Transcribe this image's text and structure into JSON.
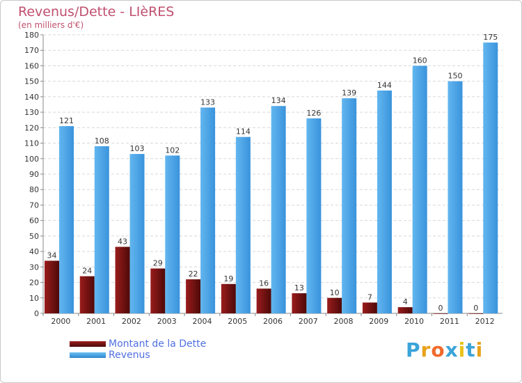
{
  "chart_data": {
    "type": "bar",
    "title": "Revenus/Dette - LIèRES",
    "subtitle": "(en milliers d'€)",
    "categories": [
      "2000",
      "2001",
      "2002",
      "2003",
      "2004",
      "2005",
      "2006",
      "2007",
      "2008",
      "2009",
      "2010",
      "2011",
      "2012"
    ],
    "series": [
      {
        "name": "Montant de la Dette",
        "color": "#7a1212",
        "values": [
          34,
          24,
          43,
          29,
          22,
          19,
          16,
          13,
          10,
          7,
          4,
          0,
          0
        ]
      },
      {
        "name": "Revenus",
        "color": "#4ea3e6",
        "values": [
          121,
          108,
          103,
          102,
          133,
          114,
          134,
          126,
          139,
          144,
          160,
          150,
          175
        ]
      }
    ],
    "ylim": [
      0,
      180
    ],
    "ytick_step": 10,
    "grid": true,
    "legend_position": "bottom-left"
  },
  "legend": {
    "items": [
      {
        "label": "Montant de la Dette",
        "color": "#7a1212"
      },
      {
        "label": "Revenus",
        "color": "#4ea3e6"
      }
    ]
  },
  "logo": {
    "text": "Proxiti",
    "colors": [
      "#3ba4d9",
      "#e8a21a",
      "#f06a2a",
      "#3ba4d9",
      "#e8c21a",
      "#3ba4d9",
      "#e8a21a"
    ]
  }
}
